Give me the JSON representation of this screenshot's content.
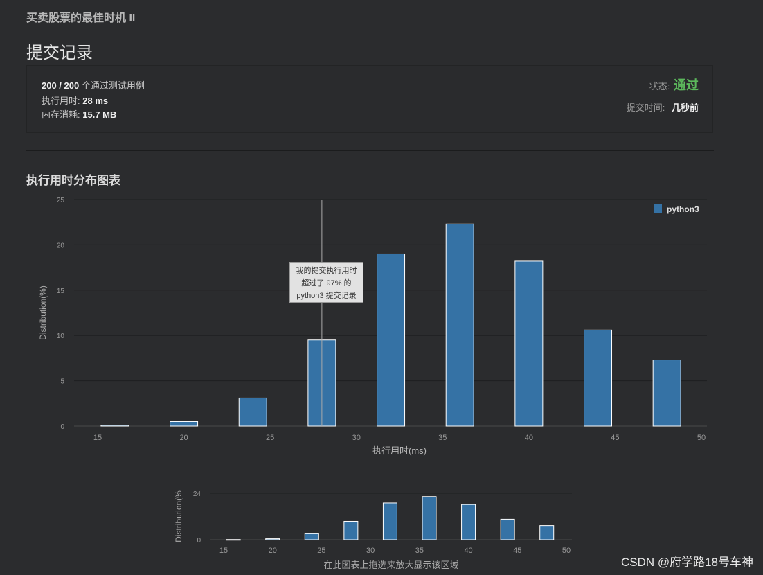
{
  "problem_title": "买卖股票的最佳时机 II",
  "section_title": "提交记录",
  "summary": {
    "passed": "200 / 200",
    "passed_suffix": "个通过测试用例",
    "runtime_label": "执行用时:",
    "runtime_value": "28 ms",
    "memory_label": "内存消耗:",
    "memory_value": "15.7 MB",
    "status_label": "状态:",
    "status_value": "通过",
    "submit_time_label": "提交时间:",
    "submit_time_value": "几秒前"
  },
  "chart_section_title": "执行用时分布图表",
  "tooltip": {
    "line1": "我的提交执行用时",
    "line2": "超过了 97% 的",
    "line3": "python3 提交记录"
  },
  "overview_hint": "在此图表上拖选来放大显示该区域",
  "watermark": "CSDN @府学路18号车神",
  "colors": {
    "bar": "#3572a5",
    "status_pass": "#5cb85c",
    "background": "#2b2c2e"
  },
  "chart_data": [
    {
      "type": "bar",
      "xlabel": "执行用时(ms)",
      "ylabel": "Distribution(%)",
      "ylim": [
        0,
        25
      ],
      "yticks": [
        0,
        5,
        10,
        15,
        20,
        25
      ],
      "xlim": [
        15,
        50
      ],
      "xticks": [
        15,
        20,
        25,
        30,
        35,
        40,
        45,
        50
      ],
      "legend": "top-right",
      "series": [
        {
          "name": "python3",
          "x": [
            16,
            20,
            24,
            28,
            32,
            36,
            40,
            44,
            48
          ],
          "values": [
            0.1,
            0.5,
            3.1,
            9.5,
            19,
            22.3,
            18.2,
            10.6,
            7.3
          ]
        }
      ],
      "marker_x": 28
    },
    {
      "type": "bar",
      "ylabel": "Distribution(%",
      "ylim": [
        0,
        24
      ],
      "yticks": [
        0,
        24
      ],
      "xlim": [
        15,
        50
      ],
      "xticks": [
        15,
        20,
        25,
        30,
        35,
        40,
        45,
        50
      ],
      "series": [
        {
          "x": [
            16,
            20,
            24,
            28,
            32,
            36,
            40,
            44,
            48
          ],
          "values": [
            0.1,
            0.5,
            3.1,
            9.5,
            19,
            22.3,
            18.2,
            10.6,
            7.3
          ]
        }
      ]
    }
  ]
}
